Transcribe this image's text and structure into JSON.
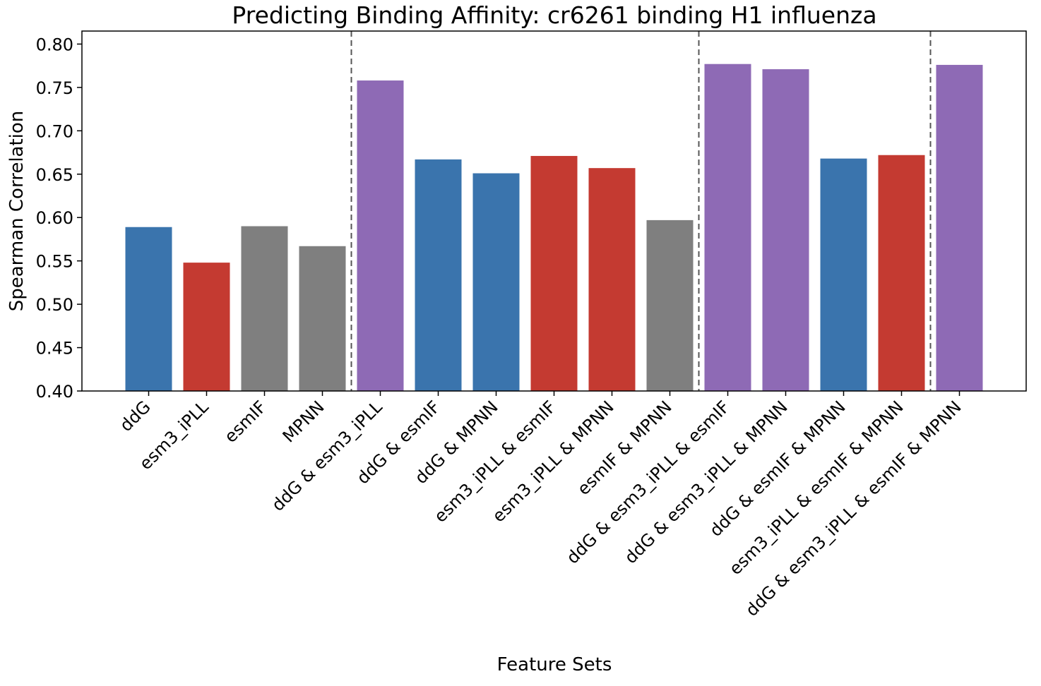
{
  "chart_data": {
    "type": "bar",
    "title": "Predicting Binding Affinity: cr6261 binding H1 influenza",
    "xlabel": "Feature Sets",
    "ylabel": "Spearman Correlation",
    "ylim": [
      0.4,
      0.815
    ],
    "yticks": [
      "0.40",
      "0.45",
      "0.50",
      "0.55",
      "0.60",
      "0.65",
      "0.70",
      "0.75",
      "0.80"
    ],
    "categories": [
      "ddG",
      "esm3_iPLL",
      "esmIF",
      "MPNN",
      "ddG & esm3_iPLL",
      "ddG & esmIF",
      "ddG & MPNN",
      "esm3_iPLL & esmIF",
      "esm3_iPLL & MPNN",
      "esmIF & MPNN",
      "ddG & esm3_iPLL & esmIF",
      "ddG & esm3_iPLL & MPNN",
      "ddG & esmIF & MPNN",
      "esm3_iPLL & esmIF & MPNN",
      "ddG & esm3_iPLL & esmIF & MPNN"
    ],
    "values": [
      0.589,
      0.548,
      0.59,
      0.567,
      0.758,
      0.667,
      0.651,
      0.671,
      0.657,
      0.597,
      0.777,
      0.771,
      0.668,
      0.672,
      0.776
    ],
    "bar_colors": [
      "#3a74ad",
      "#c43a31",
      "#7f7f7f",
      "#7f7f7f",
      "#8e6ab5",
      "#3a74ad",
      "#3a74ad",
      "#c43a31",
      "#c43a31",
      "#7f7f7f",
      "#8e6ab5",
      "#8e6ab5",
      "#3a74ad",
      "#c43a31",
      "#8e6ab5"
    ],
    "group_separators_after_index": [
      3,
      9,
      13
    ],
    "grid": false,
    "legend": "none"
  }
}
